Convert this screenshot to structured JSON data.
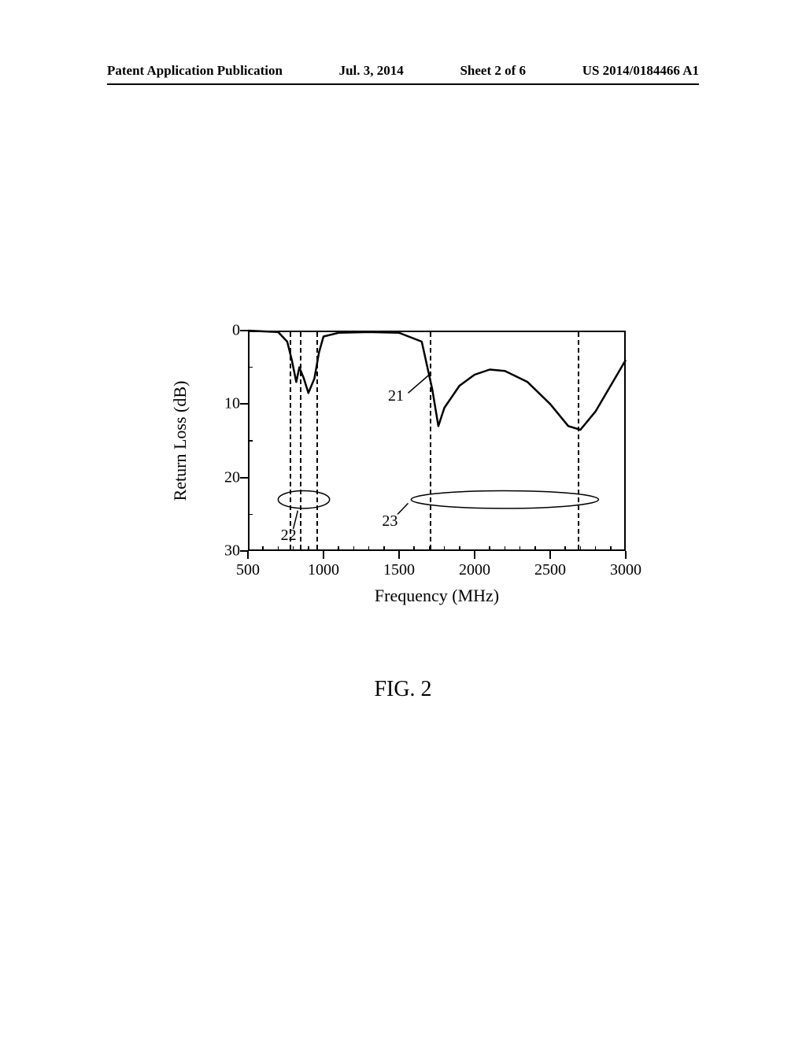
{
  "header": {
    "left": "Patent Application Publication",
    "center_date": "Jul. 3, 2014",
    "center_sheet": "Sheet 2 of 6",
    "right": "US 2014/0184466 A1"
  },
  "chart": {
    "type": "line",
    "xlabel": "Frequency (MHz)",
    "ylabel": "Return Loss (dB)",
    "xlim": [
      500,
      3000
    ],
    "ylim": [
      30,
      0
    ],
    "xticks": [
      500,
      1000,
      1500,
      2000,
      2500,
      3000
    ],
    "yticks": [
      0,
      10,
      20,
      30
    ],
    "x_minor_step": 100,
    "y_minor_step": 5,
    "background_color": "#ffffff",
    "line_color": "#000000",
    "line_width": 2.5,
    "vlines": [
      780,
      850,
      960,
      1710,
      2690
    ],
    "vline_style": "dashed",
    "data": {
      "x": [
        500,
        700,
        760,
        790,
        820,
        840,
        870,
        900,
        940,
        970,
        1000,
        1100,
        1300,
        1500,
        1650,
        1720,
        1760,
        1800,
        1900,
        2000,
        2100,
        2200,
        2350,
        2500,
        2620,
        2700,
        2800,
        2900,
        3000
      ],
      "y": [
        0,
        0.2,
        1.5,
        4.0,
        7.0,
        5.0,
        6.5,
        8.5,
        6.5,
        3.0,
        0.8,
        0.3,
        0.2,
        0.3,
        1.5,
        8.0,
        13.0,
        10.5,
        7.5,
        6.0,
        5.3,
        5.5,
        7.0,
        10.0,
        13.0,
        13.5,
        11.0,
        7.5,
        4.0
      ]
    },
    "annotations": {
      "curve_label": {
        "text": "21",
        "freq": 1500,
        "loss": 9
      },
      "band_low": {
        "text": "22",
        "freq": 790,
        "loss": 28
      },
      "band_high": {
        "text": "23",
        "freq": 1460,
        "loss": 26
      }
    },
    "ellipses": [
      {
        "cx_freq": 870,
        "cy_loss": 23,
        "rx_freq": 170,
        "ry_loss": 1.2
      },
      {
        "cx_freq": 2200,
        "cy_loss": 23,
        "rx_freq": 620,
        "ry_loss": 1.2
      }
    ],
    "leader_lines": [
      {
        "from_freq": 1560,
        "from_loss": 8.5,
        "to_freq": 1700,
        "to_loss": 6.0
      },
      {
        "from_freq": 800,
        "from_loss": 27,
        "to_freq": 830,
        "to_loss": 24.5
      },
      {
        "from_freq": 1490,
        "from_loss": 25,
        "to_freq": 1560,
        "to_loss": 23.5
      }
    ]
  },
  "figure_caption": "FIG.  2"
}
